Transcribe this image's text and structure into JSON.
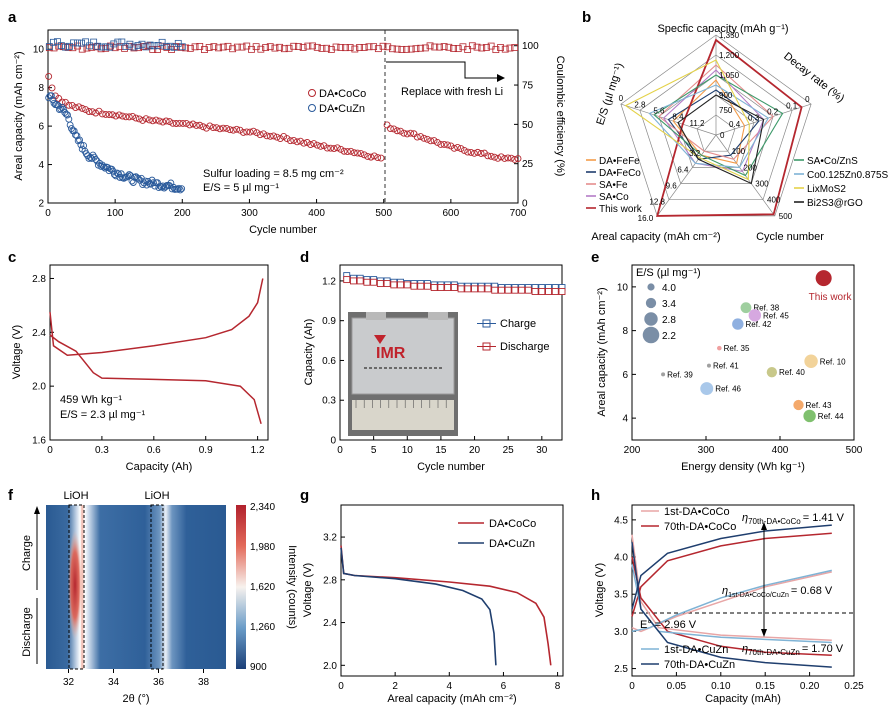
{
  "panel_labels": {
    "a": "a",
    "b": "b",
    "c": "c",
    "d": "d",
    "e": "e",
    "f": "f",
    "g": "g",
    "h": "h"
  },
  "colors": {
    "red": "#b5272f",
    "blue": "#2a5a9b",
    "darkblue": "#1f3e6e",
    "lightred": "#e8a6a6",
    "lightblue": "#7fb3d5"
  },
  "chart_data": [
    {
      "id": "a",
      "type": "scatter",
      "xlabel": "Cycle number",
      "ylabel": "Areal capacity (mAh cm⁻²)",
      "y2label": "Coulombic efficiency (%)",
      "xlim": [
        0,
        700
      ],
      "ylim": [
        2,
        11
      ],
      "y2lim": [
        0,
        110
      ],
      "xticks": [
        0,
        100,
        200,
        300,
        400,
        500,
        600,
        700
      ],
      "yticks": [
        2,
        4,
        6,
        8,
        10
      ],
      "y2ticks": [
        0,
        25,
        50,
        75,
        100
      ],
      "series": [
        {
          "name": "DA•CoCo",
          "capacity_points": [
            [
              1,
              8.6
            ],
            [
              10,
              7.6
            ],
            [
              30,
              7.1
            ],
            [
              60,
              6.8
            ],
            [
              100,
              6.6
            ],
            [
              150,
              6.3
            ],
            [
              200,
              6.1
            ],
            [
              250,
              5.9
            ],
            [
              300,
              5.7
            ],
            [
              350,
              5.4
            ],
            [
              400,
              5.0
            ],
            [
              450,
              4.7
            ],
            [
              500,
              4.3
            ],
            [
              505,
              6.0
            ],
            [
              520,
              5.8
            ],
            [
              560,
              5.4
            ],
            [
              600,
              4.9
            ],
            [
              640,
              4.6
            ],
            [
              680,
              4.3
            ],
            [
              700,
              4.3
            ]
          ],
          "ce_percent": 100
        },
        {
          "name": "DA•CuZn",
          "capacity_points": [
            [
              1,
              7.6
            ],
            [
              10,
              7.2
            ],
            [
              20,
              6.9
            ],
            [
              30,
              6.5
            ],
            [
              40,
              5.5
            ],
            [
              60,
              4.5
            ],
            [
              80,
              4.0
            ],
            [
              100,
              3.6
            ],
            [
              130,
              3.2
            ],
            [
              160,
              3.0
            ],
            [
              200,
              2.8
            ]
          ],
          "ce_percent": 100
        }
      ],
      "annotations": [
        "Sulfur loading = 8.5 mg cm⁻²",
        "E/S = 5 µl mg⁻¹",
        "Replace with fresh Li"
      ],
      "vline_x": 500
    },
    {
      "id": "b",
      "type": "radar",
      "axes": [
        "Specfic capacity (mAh g⁻¹)",
        "Decay rate (%)",
        "Cycle number",
        "Areal capacity (mAh cm⁻²)",
        "E/S (µl mg⁻¹)"
      ],
      "spec_ticks": [
        "900",
        "1,050",
        "1,200",
        "1,350"
      ],
      "decay_ticks": [
        "0",
        "0.1",
        "0.2",
        "0.3",
        "0.4"
      ],
      "cycle_ticks": [
        "0",
        "100",
        "200",
        "300",
        "400",
        "500"
      ],
      "areal_ticks": [
        "3.2",
        "6.4",
        "9.6",
        "12.8",
        "16.0"
      ],
      "es_ticks": [
        "0",
        "2.8",
        "5.6",
        "8.4",
        "11.2"
      ],
      "spec_inner": "750",
      "series": [
        "DA•FeFe",
        "DA•FeCo",
        "SA•Fe",
        "SA•Co",
        "This work",
        "SA•Co/ZnS",
        "Co0.125Zn0.875S",
        "LixMoS2",
        "Bi2S3@rGO"
      ]
    },
    {
      "id": "c",
      "type": "line",
      "xlabel": "Capacity (Ah)",
      "ylabel": "Voltage (V)",
      "xlim": [
        0,
        1.26
      ],
      "ylim": [
        1.6,
        2.9
      ],
      "xticks": [
        "0",
        "0.3",
        "0.6",
        "0.9",
        "1.2"
      ],
      "yticks": [
        "1.6",
        "2.0",
        "2.4",
        "2.8"
      ],
      "annotations": [
        "459 Wh kg⁻¹",
        "E/S = 2.3 µl mg⁻¹"
      ],
      "charge": [
        [
          0,
          2.55
        ],
        [
          0.02,
          2.3
        ],
        [
          0.1,
          2.23
        ],
        [
          0.3,
          2.25
        ],
        [
          0.6,
          2.3
        ],
        [
          0.9,
          2.36
        ],
        [
          1.05,
          2.42
        ],
        [
          1.15,
          2.52
        ],
        [
          1.2,
          2.62
        ],
        [
          1.23,
          2.8
        ]
      ],
      "discharge": [
        [
          0,
          2.38
        ],
        [
          0.05,
          2.33
        ],
        [
          0.15,
          2.26
        ],
        [
          0.25,
          2.1
        ],
        [
          0.3,
          2.06
        ],
        [
          0.6,
          2.05
        ],
        [
          0.9,
          2.04
        ],
        [
          1.1,
          2.0
        ],
        [
          1.18,
          1.9
        ],
        [
          1.22,
          1.72
        ]
      ]
    },
    {
      "id": "d",
      "type": "scatter",
      "xlabel": "Cycle number",
      "ylabel": "Capacity (Ah)",
      "xlim": [
        0,
        33
      ],
      "ylim": [
        0,
        1.32
      ],
      "xticks": [
        "0",
        "5",
        "10",
        "15",
        "20",
        "25",
        "30"
      ],
      "yticks": [
        "0",
        "0.3",
        "0.6",
        "0.9",
        "1.2"
      ],
      "series": [
        {
          "name": "Charge",
          "values": [
            1.24,
            1.22,
            1.22,
            1.21,
            1.21,
            1.2,
            1.2,
            1.19,
            1.19,
            1.18,
            1.18,
            1.18,
            1.18,
            1.17,
            1.17,
            1.17,
            1.17,
            1.16,
            1.16,
            1.16,
            1.16,
            1.16,
            1.16,
            1.15,
            1.15,
            1.15,
            1.15,
            1.15,
            1.15,
            1.15,
            1.15,
            1.15,
            1.15
          ]
        },
        {
          "name": "Discharge",
          "values": [
            1.21,
            1.2,
            1.2,
            1.19,
            1.19,
            1.18,
            1.18,
            1.17,
            1.17,
            1.17,
            1.16,
            1.16,
            1.16,
            1.15,
            1.15,
            1.15,
            1.15,
            1.14,
            1.14,
            1.14,
            1.14,
            1.14,
            1.13,
            1.13,
            1.13,
            1.13,
            1.13,
            1.13,
            1.12,
            1.12,
            1.12,
            1.12,
            1.12
          ]
        }
      ],
      "photo_text": "IMR"
    },
    {
      "id": "e",
      "type": "scatter",
      "xlabel": "Energy density (Wh kg⁻¹)",
      "ylabel": "Areal capacity (mAh cm⁻²)",
      "xlim": [
        200,
        500
      ],
      "ylim": [
        3,
        11
      ],
      "xticks": [
        "200",
        "300",
        "400",
        "500"
      ],
      "yticks": [
        "4",
        "6",
        "8",
        "10"
      ],
      "legend_title": "E/S (µl mg⁻¹)",
      "legend_sizes": [
        "4.0",
        "3.4",
        "2.8",
        "2.2"
      ],
      "points": [
        {
          "label": "This work",
          "x": 459,
          "y": 10.4,
          "es": 2.3,
          "color": "#b5272f"
        },
        {
          "label": "Ref. 38",
          "x": 354,
          "y": 9.05,
          "es": 3.3,
          "color": "#9fcf9f"
        },
        {
          "label": "Ref. 45",
          "x": 366,
          "y": 8.7,
          "es": 3.0,
          "color": "#d6a8e0"
        },
        {
          "label": "Ref. 42",
          "x": 343,
          "y": 8.3,
          "es": 3.2,
          "color": "#8fb0e0"
        },
        {
          "label": "Ref. 35",
          "x": 318,
          "y": 7.2,
          "es": 4.5,
          "color": "#f0a0a0"
        },
        {
          "label": "Ref. 41",
          "x": 304,
          "y": 6.4,
          "es": 4.7,
          "color": "#a0a0a0"
        },
        {
          "label": "Ref. 39",
          "x": 242,
          "y": 6.0,
          "es": 4.8,
          "color": "#a0a0a0"
        },
        {
          "label": "Ref. 46",
          "x": 301,
          "y": 5.35,
          "es": 2.9,
          "color": "#a9c8ea"
        },
        {
          "label": "Ref. 40",
          "x": 389,
          "y": 6.1,
          "es": 3.4,
          "color": "#c8c88a"
        },
        {
          "label": "Ref. 10",
          "x": 442,
          "y": 6.6,
          "es": 2.8,
          "color": "#f2d39a"
        },
        {
          "label": "Ref. 43",
          "x": 425,
          "y": 4.6,
          "es": 3.4,
          "color": "#f4a96b"
        },
        {
          "label": "Ref. 44",
          "x": 440,
          "y": 4.1,
          "es": 3.0,
          "color": "#7fc06e"
        }
      ]
    },
    {
      "id": "f",
      "type": "heatmap",
      "xlabel": "2θ (°)",
      "ylabel_top": "Charge",
      "ylabel_bottom": "Discharge",
      "xticks": [
        "32",
        "34",
        "36",
        "38"
      ],
      "colorbar_label": "Intensity (counts)",
      "colorbar_ticks": [
        "2,340",
        "1,980",
        "1,620",
        "1,260",
        "900"
      ],
      "peak_labels": [
        "LiOH",
        "LiOH"
      ],
      "peaks_2theta": [
        32.6,
        35.9
      ]
    },
    {
      "id": "g",
      "type": "line",
      "xlabel": "Areal capacity (mAh cm⁻²)",
      "ylabel": "Voltage (V)",
      "xlim": [
        0,
        8.2
      ],
      "ylim": [
        1.9,
        3.5
      ],
      "xticks": [
        "0",
        "2",
        "4",
        "6",
        "8"
      ],
      "yticks": [
        "2.0",
        "2.4",
        "2.8",
        "3.2"
      ],
      "series": [
        {
          "name": "DA•CoCo",
          "points": [
            [
              0,
              3.12
            ],
            [
              0.1,
              2.86
            ],
            [
              0.5,
              2.84
            ],
            [
              2,
              2.82
            ],
            [
              4,
              2.78
            ],
            [
              5.5,
              2.74
            ],
            [
              6.5,
              2.68
            ],
            [
              7.2,
              2.58
            ],
            [
              7.5,
              2.45
            ],
            [
              7.65,
              2.2
            ],
            [
              7.75,
              2.0
            ]
          ]
        },
        {
          "name": "DA•CuZn",
          "points": [
            [
              0,
              3.1
            ],
            [
              0.1,
              2.86
            ],
            [
              0.5,
              2.84
            ],
            [
              2,
              2.81
            ],
            [
              3.5,
              2.76
            ],
            [
              4.5,
              2.7
            ],
            [
              5.2,
              2.62
            ],
            [
              5.5,
              2.52
            ],
            [
              5.65,
              2.3
            ],
            [
              5.72,
              2.0
            ]
          ]
        }
      ]
    },
    {
      "id": "h",
      "type": "line",
      "xlabel": "Capacity (mAh)",
      "ylabel": "Voltage (V)",
      "xlim": [
        0,
        0.25
      ],
      "ylim": [
        2.4,
        4.7
      ],
      "xticks": [
        "0",
        "0.05",
        "0.10",
        "0.15",
        "0.20",
        "0.25"
      ],
      "yticks": [
        "2.5",
        "3.0",
        "3.5",
        "4.0",
        "4.5"
      ],
      "series": [
        "1st-DA•CoCo",
        "70th-DA•CoCo",
        "1st-DA•CuZn",
        "70th-DA•CuZn"
      ],
      "annotations": {
        "eta_coco_label": "η",
        "eta_coco_sub": "70th-DA•CoCo",
        "eta_coco_val": "= 1.41 V",
        "eta_1st_label": "η",
        "eta_1st_sub": "1st-DA•CoCo/CuZn",
        "eta_1st_val": "= 0.68 V",
        "eta_cuzn_label": "η",
        "eta_cuzn_sub": "70th-DA•CuZn",
        "eta_cuzn_val": "= 1.70 V",
        "e0": "E° = 2.96 V"
      }
    }
  ]
}
